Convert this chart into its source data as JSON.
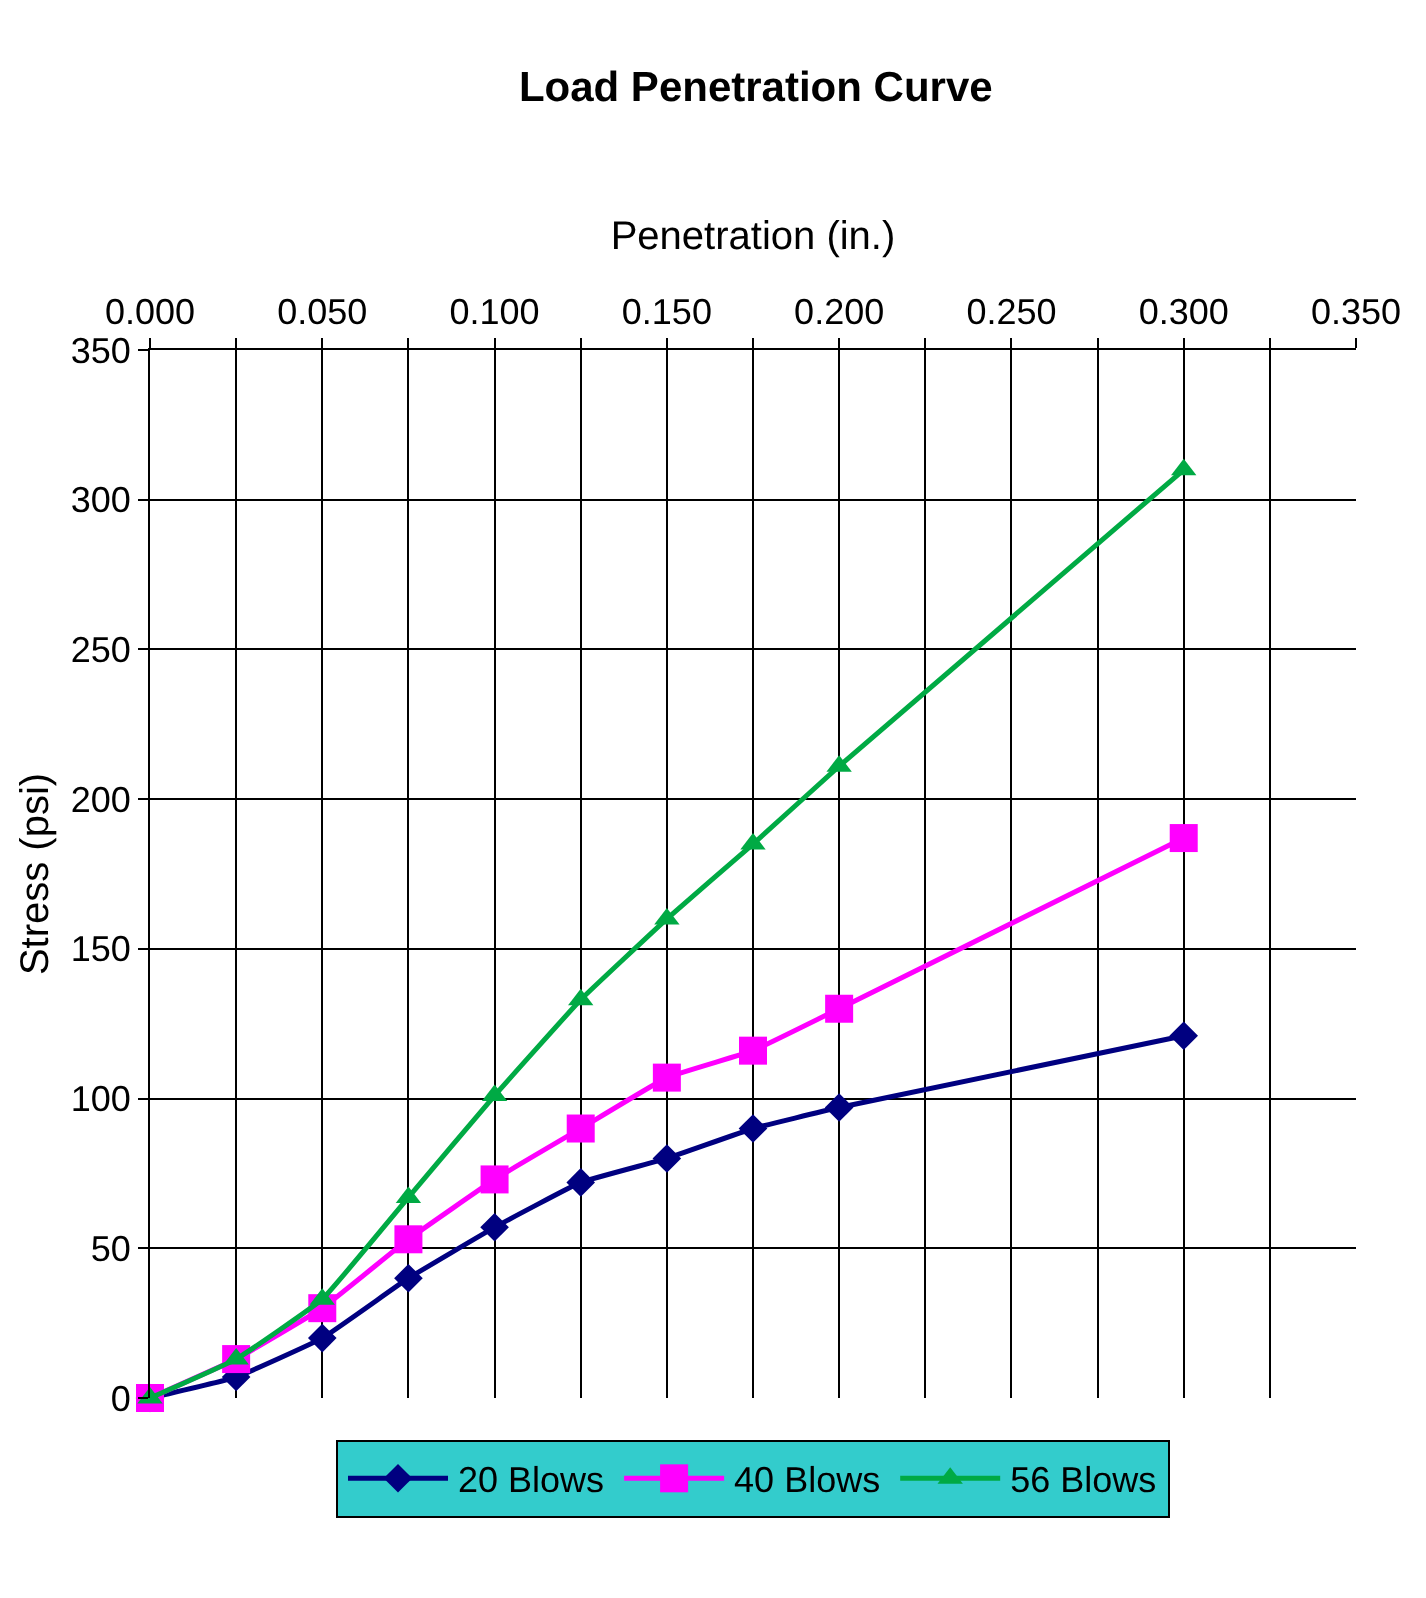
{
  "chart_data": {
    "type": "line",
    "title": "Load Penetration Curve",
    "xlabel": "Penetration (in.)",
    "ylabel": "Stress (psi)",
    "x": [
      0,
      0.025,
      0.05,
      0.075,
      0.1,
      0.125,
      0.15,
      0.175,
      0.2,
      0.3
    ],
    "series": [
      {
        "name": "20 Blows",
        "color": "#000080",
        "marker": "diamond",
        "values": [
          0,
          7,
          20,
          40,
          57,
          72,
          80,
          90,
          97,
          121
        ]
      },
      {
        "name": "40 Blows",
        "color": "#ff00ff",
        "marker": "square",
        "values": [
          0,
          13,
          30,
          53,
          73,
          90,
          107,
          116,
          130,
          187
        ]
      },
      {
        "name": "56 Blows",
        "color": "#00aa44",
        "marker": "triangle",
        "values": [
          0,
          13,
          33,
          67,
          101,
          133,
          160,
          185,
          211,
          310
        ]
      }
    ],
    "xlim": [
      0,
      0.35
    ],
    "xticks": [
      {
        "value": 0,
        "label": "0.000"
      },
      {
        "value": 0.025,
        "label": null
      },
      {
        "value": 0.05,
        "label": "0.050"
      },
      {
        "value": 0.075,
        "label": null
      },
      {
        "value": 0.1,
        "label": "0.100"
      },
      {
        "value": 0.125,
        "label": null
      },
      {
        "value": 0.15,
        "label": "0.150"
      },
      {
        "value": 0.175,
        "label": null
      },
      {
        "value": 0.2,
        "label": "0.200"
      },
      {
        "value": 0.225,
        "label": null
      },
      {
        "value": 0.25,
        "label": "0.250"
      },
      {
        "value": 0.275,
        "label": null
      },
      {
        "value": 0.3,
        "label": "0.300"
      },
      {
        "value": 0.325,
        "label": null
      },
      {
        "value": 0.35,
        "label": "0.350"
      }
    ],
    "ylim": [
      0,
      350
    ],
    "yticks": [
      0,
      50,
      100,
      150,
      200,
      250,
      300,
      350
    ],
    "grid": true,
    "legend": "bottom",
    "line_style": "solid"
  }
}
